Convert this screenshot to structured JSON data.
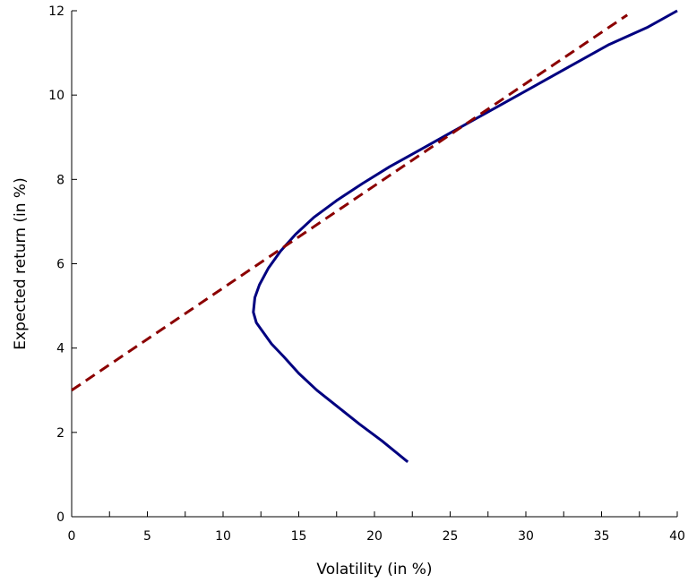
{
  "chart_data": {
    "type": "line",
    "title": "",
    "xlabel": "Volatility (in %)",
    "ylabel": "Expected return (in %)",
    "xlim": [
      0,
      40
    ],
    "ylim": [
      0,
      12
    ],
    "xticks": [
      0,
      5,
      10,
      15,
      20,
      25,
      30,
      35,
      40
    ],
    "yticks": [
      0,
      2,
      4,
      6,
      8,
      10,
      12
    ],
    "x_minor_step": 2.5,
    "grid": false,
    "legend": "none",
    "series": [
      {
        "style": "solid",
        "color": "#000080",
        "x": [
          22.2,
          20.5,
          19.0,
          17.6,
          16.2,
          15.0,
          14.0,
          13.2,
          12.6,
          12.2,
          12.0,
          12.1,
          12.4,
          13.0,
          13.8,
          14.8,
          16.0,
          17.5,
          19.2,
          21.0,
          23.0,
          25.5,
          28.0,
          30.5,
          33.0,
          35.5,
          38.0,
          40.0
        ],
        "y": [
          1.3,
          1.8,
          2.2,
          2.6,
          3.0,
          3.4,
          3.8,
          4.1,
          4.4,
          4.6,
          4.85,
          5.2,
          5.5,
          5.9,
          6.3,
          6.7,
          7.1,
          7.5,
          7.9,
          8.3,
          8.7,
          9.2,
          9.7,
          10.2,
          10.7,
          11.2,
          11.6,
          12.0
        ]
      },
      {
        "style": "dashed",
        "color": "#8b0000",
        "x": [
          0,
          36.7
        ],
        "y": [
          3.0,
          11.9
        ]
      }
    ]
  }
}
